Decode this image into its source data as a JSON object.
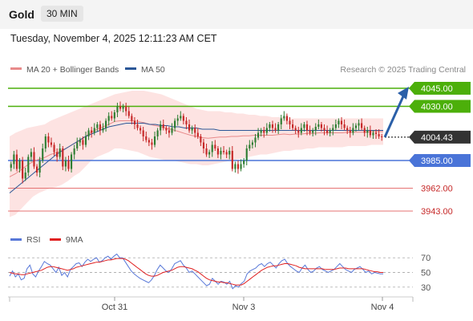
{
  "header": {
    "symbol": "Gold",
    "timeframe": "30 MIN"
  },
  "datetime": "Tuesday, November 4, 2025 12:11:23 AM CET",
  "colors": {
    "bull": "#2e7d32",
    "bear": "#c62828",
    "ma50": "#2b5797",
    "ma20": "#e88a8a",
    "band": "#fde0df",
    "green_level": "#4caf0a",
    "blue_level": "#4a74d8",
    "red_level": "#e57373",
    "current": "#333333",
    "rsi": "#5878d8",
    "rsi_ma": "#e02020"
  },
  "legend": {
    "ma20_label": "MA 20 + Bollinger Bands",
    "ma50_label": "MA 50",
    "credit": "Research © 2025 Trading Central"
  },
  "rsi_legend": {
    "rsi_label": "RSI",
    "ma_label": "9MA"
  },
  "chart_data": [
    {
      "type": "candlestick",
      "title": "Gold",
      "timeframe": "30 MIN",
      "x_tick_labels": [
        "Oct 31",
        "Nov 3",
        "Nov 4"
      ],
      "ylim": [
        3925,
        4055
      ],
      "current_price": 4004.43,
      "levels": [
        {
          "value": 4045.0,
          "label": "4045.00",
          "kind": "resistance"
        },
        {
          "value": 4030.0,
          "label": "4030.00",
          "kind": "resistance"
        },
        {
          "value": 3985.0,
          "label": "3985.00",
          "kind": "support"
        },
        {
          "value": 3962.0,
          "label": "3962.00",
          "kind": "support"
        },
        {
          "value": 3943.0,
          "label": "3943.00",
          "kind": "support"
        }
      ],
      "current_label": "4004.43",
      "projection": {
        "from": 4004.43,
        "to": 4045.0
      },
      "series": [
        {
          "name": "MA 20 + Bollinger Bands",
          "style": "band"
        },
        {
          "name": "MA 50",
          "style": "line"
        }
      ],
      "close": [
        3982,
        3990,
        3978,
        3985,
        3970,
        3975,
        3988,
        3992,
        3980,
        3975,
        3985,
        3995,
        4005,
        4000,
        3998,
        3992,
        3988,
        3995,
        3980,
        3985,
        3978,
        3990,
        3995,
        4000,
        4002,
        3998,
        4005,
        4010,
        4008,
        4012,
        4015,
        4010,
        4012,
        4018,
        4022,
        4020,
        4025,
        4030,
        4028,
        4030,
        4026,
        4022,
        4018,
        4015,
        4012,
        4010,
        4005,
        4002,
        4000,
        3998,
        4005,
        4010,
        4015,
        4012,
        4010,
        4008,
        4012,
        4018,
        4020,
        4022,
        4018,
        4015,
        4010,
        4012,
        4008,
        4005,
        4000,
        3995,
        3990,
        3992,
        3998,
        3995,
        3990,
        3993,
        3992,
        3990,
        3993,
        3978,
        3982,
        3978,
        3982,
        3985,
        3995,
        3998,
        4000,
        4004,
        4008,
        4010,
        4008,
        4012,
        4015,
        4012,
        4010,
        4015,
        4020,
        4022,
        4018,
        4015,
        4012,
        4010,
        4008,
        4012,
        4015,
        4010,
        4008,
        4010,
        4013,
        4015,
        4012,
        4010,
        4008,
        4010,
        4012,
        4015,
        4018,
        4015,
        4012,
        4010,
        4008,
        4012,
        4014,
        4016,
        4012,
        4008,
        4010,
        4006,
        4008,
        4007,
        4005,
        4004.43
      ],
      "upper_band": [
        4005,
        4008,
        4010,
        4012,
        4013,
        4014,
        4015,
        4018,
        4020,
        4022,
        4024,
        4026,
        4028,
        4030,
        4032,
        4034,
        4036,
        4038,
        4040,
        4041,
        4042,
        4043,
        4043,
        4043,
        4042,
        4041,
        4040,
        4038,
        4036,
        4034,
        4032,
        4030,
        4028,
        4027,
        4026,
        4026,
        4026,
        4025,
        4025,
        4024,
        4024,
        4023,
        4023,
        4022,
        4022,
        4021,
        4021,
        4021,
        4020,
        4020,
        4020,
        4020,
        4020,
        4020,
        4020,
        4020,
        4020,
        4020,
        4020,
        4020,
        4020,
        4020,
        4020,
        4020,
        4020
      ],
      "lower_band": [
        3938,
        3940,
        3945,
        3950,
        3955,
        3958,
        3960,
        3962,
        3963,
        3965,
        3968,
        3972,
        3975,
        3980,
        3985,
        3988,
        3990,
        3992,
        3995,
        3995,
        3994,
        3993,
        3992,
        3990,
        3988,
        3987,
        3986,
        3985,
        3985,
        3984,
        3983,
        3982,
        3982,
        3981,
        3981,
        3982,
        3983,
        3984,
        3985,
        3986,
        3987,
        3988,
        3989,
        3990,
        3990,
        3991,
        3992,
        3993,
        3993,
        3994,
        3994,
        3995,
        3995,
        3996,
        3996,
        3996,
        3996,
        3996,
        3997,
        3997,
        3997,
        3997,
        3998,
        3998,
        3998
      ],
      "ma50": [
        3958,
        3962,
        3966,
        3970,
        3974,
        3978,
        3982,
        3986,
        3990,
        3993,
        3996,
        3999,
        4002,
        4005,
        4007,
        4009,
        4011,
        4013,
        4014,
        4015,
        4016,
        4016,
        4016,
        4016,
        4015,
        4015,
        4014,
        4014,
        4013,
        4013,
        4012,
        4012,
        4012,
        4011,
        4011,
        4011,
        4010,
        4010,
        4010,
        4010,
        4010,
        4010,
        4010,
        4010,
        4010,
        4010,
        4010,
        4010,
        4010,
        4010,
        4010,
        4010,
        4010,
        4010,
        4010,
        4010,
        4010,
        4010,
        4010,
        4010,
        4010,
        4010,
        4010,
        4010,
        4010
      ]
    },
    {
      "type": "line",
      "title": "RSI",
      "y_tick_labels": [
        "70",
        "50",
        "30"
      ],
      "ylim": [
        20,
        80
      ],
      "series": [
        {
          "name": "RSI",
          "values": [
            45,
            52,
            44,
            48,
            40,
            42,
            55,
            60,
            48,
            44,
            52,
            58,
            65,
            62,
            60,
            55,
            50,
            57,
            46,
            50,
            44,
            54,
            58,
            62,
            63,
            58,
            64,
            68,
            65,
            68,
            70,
            64,
            66,
            70,
            72,
            68,
            72,
            75,
            70,
            70,
            64,
            58,
            52,
            48,
            45,
            42,
            40,
            38,
            36,
            40,
            46,
            54,
            60,
            56,
            52,
            50,
            55,
            62,
            64,
            66,
            60,
            56,
            50,
            52,
            48,
            44,
            40,
            36,
            32,
            34,
            42,
            38,
            34,
            38,
            37,
            34,
            38,
            28,
            32,
            30,
            35,
            38,
            48,
            52,
            54,
            56,
            60,
            62,
            58,
            62,
            64,
            60,
            56,
            62,
            66,
            68,
            62,
            58,
            55,
            52,
            50,
            56,
            60,
            54,
            50,
            52,
            56,
            58,
            54,
            52,
            50,
            52,
            54,
            58,
            62,
            58,
            54,
            52,
            50,
            54,
            56,
            58,
            54,
            50,
            52,
            48,
            50,
            49,
            48,
            48
          ]
        },
        {
          "name": "9MA",
          "values": [
            50,
            49,
            48,
            48,
            47,
            47,
            48,
            49,
            50,
            51,
            52,
            53,
            55,
            57,
            58,
            58,
            57,
            56,
            55,
            54,
            53,
            54,
            55,
            57,
            58,
            59,
            60,
            61,
            62,
            63,
            64,
            64,
            65,
            66,
            67,
            67,
            68,
            69,
            69,
            69,
            68,
            66,
            63,
            60,
            57,
            54,
            51,
            48,
            46,
            45,
            45,
            46,
            48,
            50,
            51,
            52,
            53,
            55,
            57,
            58,
            58,
            57,
            56,
            55,
            53,
            51,
            48,
            45,
            42,
            40,
            39,
            38,
            37,
            37,
            36,
            36,
            35,
            34,
            33,
            33,
            33,
            35,
            38,
            41,
            44,
            47,
            50,
            53,
            55,
            57,
            58,
            59,
            59,
            60,
            61,
            62,
            62,
            61,
            60,
            59,
            57,
            56,
            55,
            55,
            55,
            55,
            55,
            55,
            55,
            54,
            54,
            54,
            54,
            55,
            56,
            56,
            56,
            55,
            55,
            55,
            55,
            55,
            55,
            54,
            53,
            52,
            51,
            51,
            50,
            50
          ]
        }
      ]
    }
  ]
}
